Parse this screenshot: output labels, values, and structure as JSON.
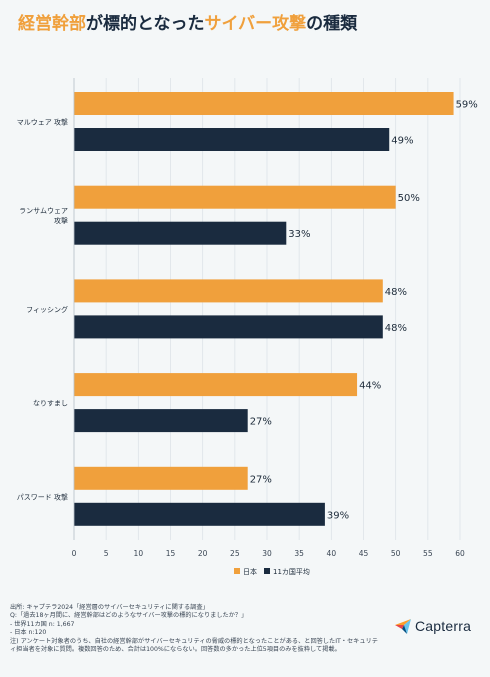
{
  "title": {
    "part1": "経営幹部",
    "part2": "が標的となった",
    "part3": "サイバー攻撃",
    "part4": "の種類"
  },
  "colors": {
    "japan": "#f0a03c",
    "average": "#1a2b3f",
    "accent": "#f0a03c"
  },
  "chart_data": {
    "type": "bar",
    "orientation": "horizontal",
    "categories": [
      "マルウェア 攻撃",
      "ランサムウェア\n攻撃",
      "フィッシング",
      "なりすまし",
      "パスワード 攻撃"
    ],
    "series": [
      {
        "name": "日本",
        "values": [
          59,
          50,
          48,
          44,
          27
        ],
        "color": "#f0a03c"
      },
      {
        "name": "11カ国平均",
        "values": [
          49,
          33,
          48,
          27,
          39
        ],
        "color": "#1a2b3f"
      }
    ],
    "xlim": [
      0,
      60
    ],
    "xticks": [
      0,
      5,
      10,
      15,
      20,
      25,
      30,
      35,
      40,
      45,
      50,
      55,
      60
    ],
    "value_suffix": "%",
    "grid": true,
    "legend": "bottom-center"
  },
  "footer": {
    "lines": [
      "出所: キャプテラ2024「経営層のサイバーセキュリティに関する調査」",
      "Q:「過去18ヶ月間に、経営幹部はどのようなサイバー攻撃の標的になりましたか？」",
      "- 世界11カ国 n: 1,667",
      "- 日本  n:120",
      "注) アンケート対象者のうち、自社の経営幹部がサイバーセキュリティの脅威の標的となったことがある、と回答したIT・セキュリティ担当者を対象に質問。複数回答のため、合計は100%にならない。回答数の多かった上位5項目のみを抜粋して掲載。"
    ]
  },
  "logo": {
    "text": "Capterra"
  }
}
